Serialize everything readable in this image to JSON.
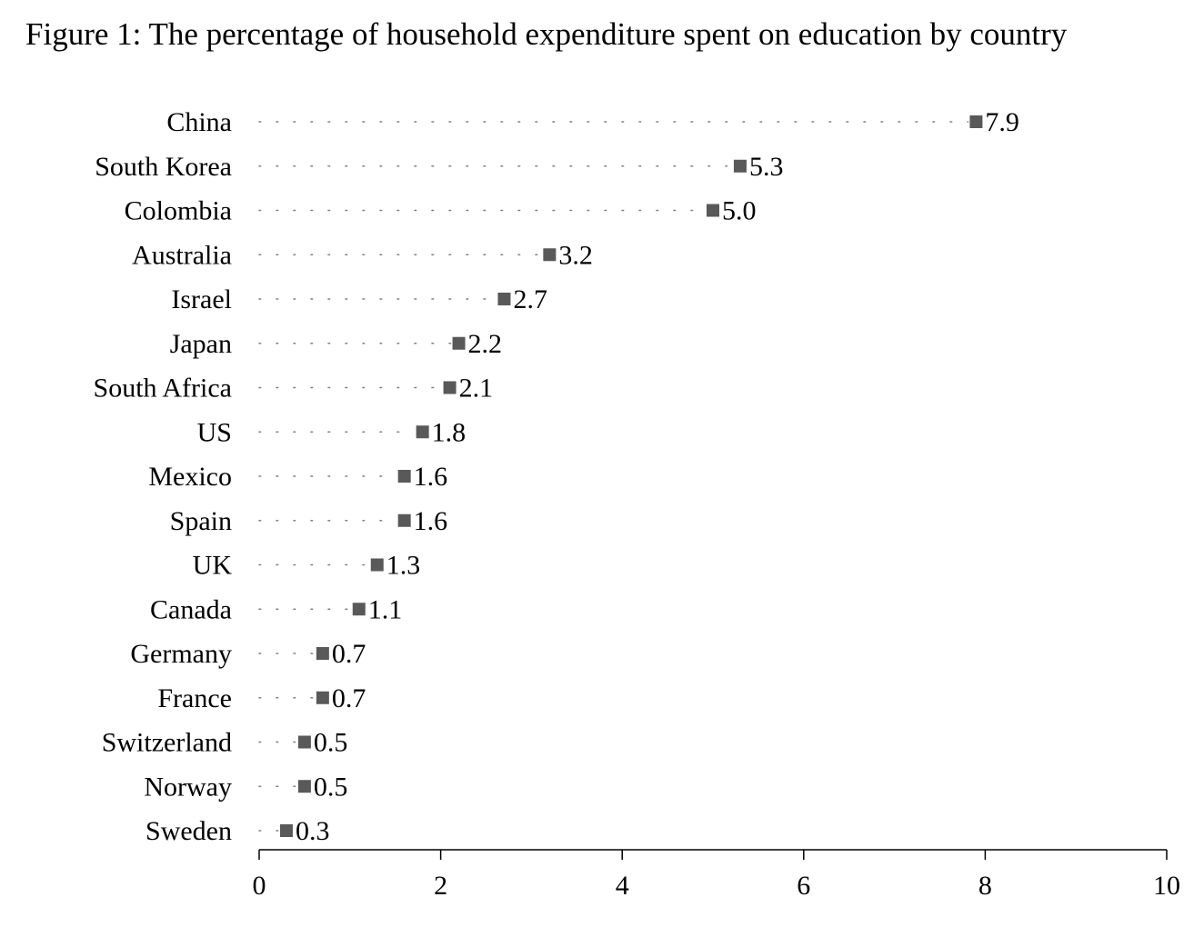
{
  "chart_data": {
    "type": "dot",
    "title": "Figure 1: The percentage of household expenditure spent on education by country",
    "categories": [
      "China",
      "South Korea",
      "Colombia",
      "Australia",
      "Israel",
      "Japan",
      "South Africa",
      "US",
      "Mexico",
      "Spain",
      "UK",
      "Canada",
      "Germany",
      "France",
      "Switzerland",
      "Norway",
      "Sweden"
    ],
    "values": [
      7.9,
      5.3,
      5.0,
      3.2,
      2.7,
      2.2,
      2.1,
      1.8,
      1.6,
      1.6,
      1.3,
      1.1,
      0.7,
      0.7,
      0.5,
      0.5,
      0.3
    ],
    "value_labels": [
      "7.9",
      "5.3",
      "5.0",
      "3.2",
      "2.7",
      "2.2",
      "2.1",
      "1.8",
      "1.6",
      "1.6",
      "1.3",
      "1.1",
      "0.7",
      "0.7",
      "0.5",
      "0.5",
      "0.3"
    ],
    "xlim": [
      0,
      10
    ],
    "xticks": [
      0,
      2,
      4,
      6,
      8,
      10
    ],
    "xtick_labels": [
      "0",
      "2",
      "4",
      "6",
      "8",
      "10"
    ],
    "xlabel": "",
    "ylabel": "",
    "marker_color": "#595959",
    "dot_color": "#7f7f7f",
    "axis_color": "#000000"
  }
}
